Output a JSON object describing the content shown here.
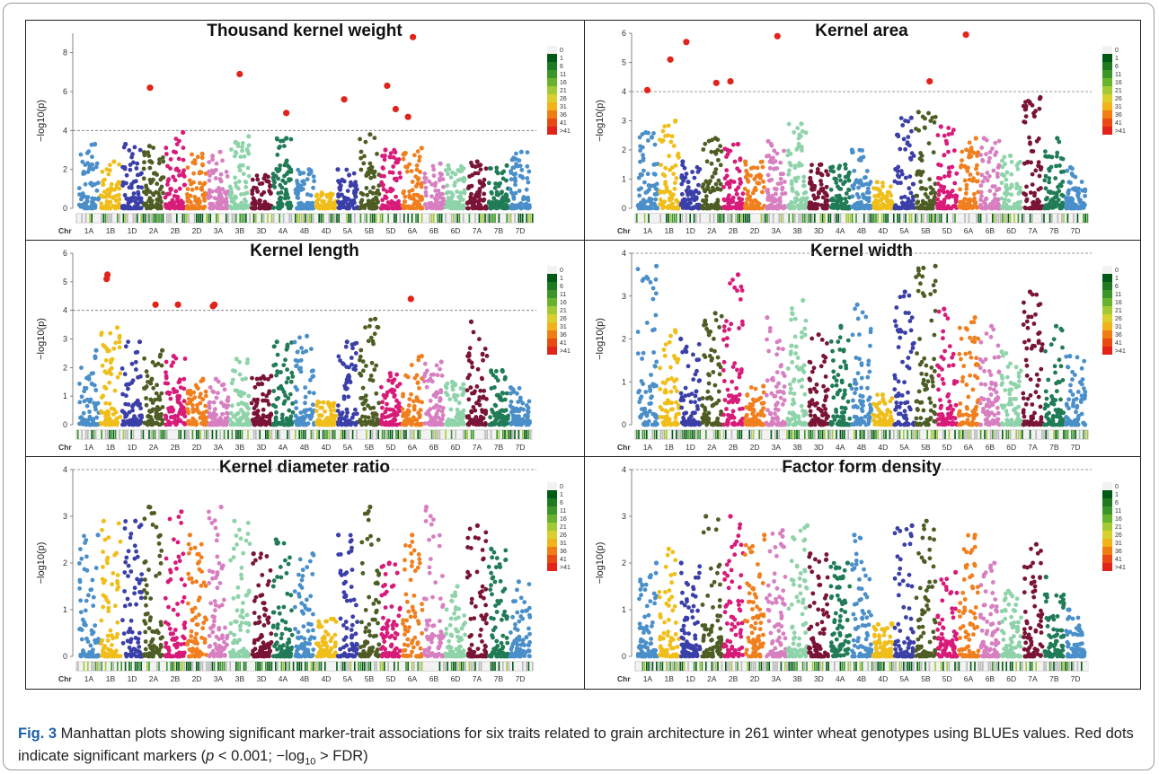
{
  "chart_data": [
    {
      "type": "scatter",
      "title": "Thousand kernel weight",
      "ylabel": "−log10(p)",
      "ylim": [
        0,
        9
      ],
      "yticks": [
        0,
        2,
        4,
        6,
        8
      ],
      "threshold": 4,
      "chromosomes": [
        "1A",
        "1B",
        "1D",
        "2A",
        "2B",
        "2D",
        "3A",
        "3B",
        "3D",
        "4A",
        "4B",
        "4D",
        "5A",
        "5B",
        "5D",
        "6A",
        "6B",
        "6D",
        "7A",
        "7B",
        "7D"
      ],
      "peaks": [
        3.3,
        2.4,
        3.3,
        3.2,
        3.9,
        2.8,
        2.9,
        3.7,
        1.7,
        3.6,
        2.0,
        0.8,
        2.0,
        3.8,
        3.0,
        3.1,
        2.3,
        2.2,
        2.4,
        2.2,
        2.9
      ],
      "significant": [
        {
          "chr": "2A",
          "value": 6.2
        },
        {
          "chr": "3B",
          "value": 6.9
        },
        {
          "chr": "4A",
          "value": 4.9
        },
        {
          "chr": "5A",
          "value": 5.6
        },
        {
          "chr": "5D",
          "value": 6.3
        },
        {
          "chr": "5D",
          "value": 5.1
        },
        {
          "chr": "6A",
          "value": 8.8
        },
        {
          "chr": "6A",
          "value": 4.7
        }
      ]
    },
    {
      "type": "scatter",
      "title": "Kernel area",
      "ylabel": "−log10(p)",
      "ylim": [
        0,
        6
      ],
      "yticks": [
        0,
        1,
        2,
        3,
        4,
        5,
        6
      ],
      "threshold": 4,
      "chromosomes": [
        "1A",
        "1B",
        "1D",
        "2A",
        "2B",
        "2D",
        "3A",
        "3B",
        "3D",
        "4A",
        "4B",
        "4D",
        "5A",
        "5B",
        "5D",
        "6A",
        "6B",
        "6D",
        "7A",
        "7B",
        "7D"
      ],
      "peaks": [
        2.6,
        3.0,
        1.6,
        2.4,
        2.2,
        1.6,
        2.3,
        2.9,
        1.5,
        1.5,
        2.0,
        0.9,
        3.1,
        3.3,
        2.8,
        2.4,
        2.4,
        1.8,
        3.8,
        2.4,
        1.4
      ],
      "significant": [
        {
          "chr": "1A",
          "value": 4.05
        },
        {
          "chr": "1B",
          "value": 5.1
        },
        {
          "chr": "1D",
          "value": 5.7
        },
        {
          "chr": "2A",
          "value": 4.3
        },
        {
          "chr": "2B",
          "value": 4.35
        },
        {
          "chr": "3A",
          "value": 5.9
        },
        {
          "chr": "5B",
          "value": 4.35
        },
        {
          "chr": "6A",
          "value": 5.95
        }
      ]
    },
    {
      "type": "scatter",
      "title": "Kernel length",
      "ylabel": "−log10(p)",
      "ylim": [
        0,
        6
      ],
      "yticks": [
        0,
        1,
        2,
        3,
        4,
        5,
        6
      ],
      "threshold": 4,
      "chromosomes": [
        "1A",
        "1B",
        "1D",
        "2A",
        "2B",
        "2D",
        "3A",
        "3B",
        "3D",
        "4A",
        "4B",
        "4D",
        "5A",
        "5B",
        "5D",
        "6A",
        "6B",
        "6D",
        "7A",
        "7B",
        "7D"
      ],
      "peaks": [
        2.6,
        3.4,
        2.9,
        2.6,
        2.4,
        1.6,
        1.6,
        2.3,
        1.7,
        2.9,
        3.1,
        0.8,
        2.9,
        3.7,
        1.8,
        2.4,
        2.2,
        1.5,
        3.6,
        1.9,
        1.3
      ],
      "significant": [
        {
          "chr": "1B",
          "value": 5.25
        },
        {
          "chr": "1B",
          "value": 5.1
        },
        {
          "chr": "2A",
          "value": 4.2
        },
        {
          "chr": "2B",
          "value": 4.2
        },
        {
          "chr": "3A",
          "value": 4.15
        },
        {
          "chr": "3A",
          "value": 4.2
        },
        {
          "chr": "6A",
          "value": 4.4
        }
      ]
    },
    {
      "type": "scatter",
      "title": "Kernel width",
      "ylabel": "−log10(p)",
      "ylim": [
        0,
        4
      ],
      "yticks": [
        0,
        1,
        2,
        3,
        4
      ],
      "threshold": 4,
      "chromosomes": [
        "1A",
        "1B",
        "1D",
        "2A",
        "2B",
        "2D",
        "3A",
        "3B",
        "3D",
        "4A",
        "4B",
        "4D",
        "5A",
        "5B",
        "5D",
        "6A",
        "6B",
        "6D",
        "7A",
        "7B",
        "7D"
      ],
      "peaks": [
        3.7,
        2.2,
        2.0,
        2.6,
        3.5,
        0.9,
        2.5,
        2.9,
        2.1,
        2.3,
        2.8,
        0.7,
        3.1,
        3.7,
        2.7,
        2.5,
        2.3,
        1.7,
        3.1,
        2.3,
        1.6
      ],
      "significant": []
    },
    {
      "type": "scatter",
      "title": "Kernel diameter ratio",
      "ylabel": "−log10(p)",
      "ylim": [
        0,
        4
      ],
      "yticks": [
        0,
        1,
        2,
        3,
        4
      ],
      "threshold": 4,
      "chromosomes": [
        "1A",
        "1B",
        "1D",
        "2A",
        "2B",
        "2D",
        "3A",
        "3B",
        "3D",
        "4A",
        "4B",
        "4D",
        "5A",
        "5B",
        "5D",
        "6A",
        "6B",
        "6D",
        "7A",
        "7B",
        "7D"
      ],
      "peaks": [
        2.6,
        2.9,
        2.9,
        3.2,
        3.1,
        2.6,
        3.2,
        2.9,
        2.2,
        2.5,
        2.2,
        0.8,
        2.6,
        3.2,
        2.0,
        2.6,
        3.2,
        1.5,
        2.8,
        2.3,
        1.6
      ],
      "significant": []
    },
    {
      "type": "scatter",
      "title": "Factor form density",
      "ylabel": "−log10(p)",
      "ylim": [
        0,
        4
      ],
      "yticks": [
        0,
        1,
        2,
        3,
        4
      ],
      "threshold": 4,
      "chromosomes": [
        "1A",
        "1B",
        "1D",
        "2A",
        "2B",
        "2D",
        "3A",
        "3B",
        "3D",
        "4A",
        "4B",
        "4D",
        "5A",
        "5B",
        "5D",
        "6A",
        "6B",
        "6D",
        "7A",
        "7B",
        "7D"
      ],
      "peaks": [
        2.0,
        2.3,
        2.0,
        3.0,
        3.0,
        2.6,
        2.7,
        2.8,
        2.2,
        2.0,
        2.6,
        0.7,
        2.8,
        2.9,
        1.8,
        2.6,
        2.0,
        1.4,
        2.4,
        1.7,
        1.0
      ],
      "significant": []
    }
  ],
  "axis": {
    "chr_label": "Chr"
  },
  "legend": {
    "labels": [
      "0",
      "1",
      "6",
      "11",
      "16",
      "21",
      "26",
      "31",
      "36",
      "41",
      ">41"
    ],
    "colors": [
      "#f2f2f2",
      "#005a16",
      "#1f7a1f",
      "#3b9629",
      "#68b32d",
      "#a3c935",
      "#d9cf2f",
      "#f2b21a",
      "#ef7d13",
      "#e94a13",
      "#e2231a"
    ]
  },
  "colors": {
    "chromosome_palette": [
      "#4a8fc9",
      "#f0be1a",
      "#3b3fa8",
      "#4e5d24",
      "#d81b79",
      "#f07f1e",
      "#d77fc0",
      "#8ed3a9",
      "#7a1436",
      "#207b57",
      "#4a8fc9",
      "#f0be1a",
      "#3b3fa8",
      "#4e5d24",
      "#d81b79",
      "#f07f1e",
      "#d77fc0",
      "#8ed3a9",
      "#7a1436",
      "#207b57",
      "#4a8fc9"
    ],
    "significant": "#e2231a",
    "threshold_line": "#777777"
  },
  "caption": {
    "fig_label": "Fig. 3",
    "text": " Manhattan plots showing significant marker-trait associations for six traits related to grain architecture in 261 winter wheat genotypes using BLUEs values. Red dots indicate significant markers (",
    "p_text": "p",
    "mid_text": " < 0.001; −log",
    "sub_text": "10",
    "end_text": " > FDR)"
  }
}
